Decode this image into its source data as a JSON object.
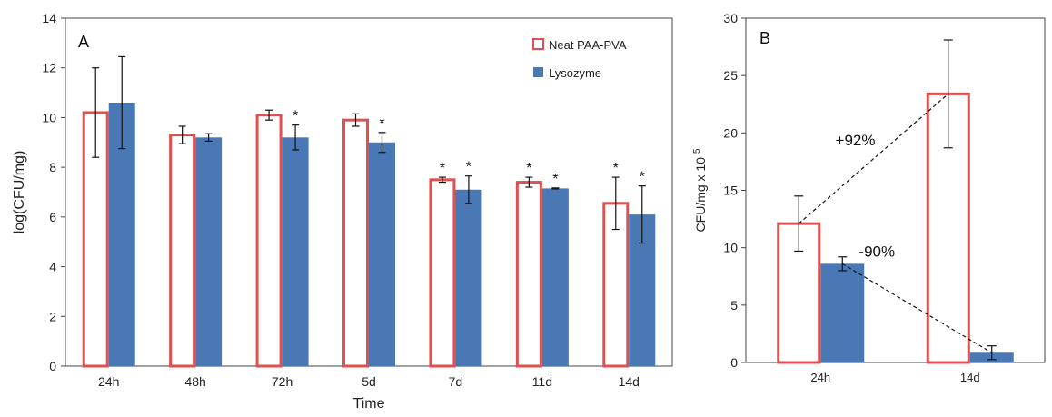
{
  "colors": {
    "neat": "#e05050",
    "lysozyme": "#4a78b4"
  },
  "chart_data": [
    {
      "panel": "A",
      "type": "bar",
      "xlabel": "Time",
      "ylabel": "log(CFU/mg)",
      "ylim": [
        0,
        14
      ],
      "yticks": [
        0,
        2,
        4,
        6,
        8,
        10,
        12,
        14
      ],
      "categories": [
        "24h",
        "48h",
        "72h",
        "5d",
        "7d",
        "11d",
        "14d"
      ],
      "legend_position": "top-right",
      "series": [
        {
          "name": "Neat PAA-PVA",
          "style": "outline",
          "values": [
            10.2,
            9.3,
            10.1,
            9.9,
            7.5,
            7.4,
            6.55
          ],
          "errors": [
            1.8,
            0.35,
            0.2,
            0.25,
            0.1,
            0.2,
            1.05
          ],
          "significant": [
            false,
            false,
            false,
            false,
            true,
            true,
            true
          ]
        },
        {
          "name": "Lysozyme",
          "style": "filled",
          "values": [
            10.6,
            9.2,
            9.2,
            9.0,
            7.1,
            7.15,
            6.1
          ],
          "errors": [
            1.85,
            0.15,
            0.5,
            0.4,
            0.55,
            0.02,
            1.15
          ],
          "significant": [
            false,
            false,
            true,
            true,
            true,
            true,
            true
          ]
        }
      ],
      "significance_marker": "*"
    },
    {
      "panel": "B",
      "type": "bar",
      "xlabel": "",
      "ylabel": "CFU/mg x 10",
      "ylabel_superscript": "5",
      "ylim": [
        0,
        30
      ],
      "yticks": [
        0,
        5,
        10,
        15,
        20,
        25,
        30
      ],
      "categories": [
        "24h",
        "14d"
      ],
      "series": [
        {
          "name": "Neat PAA-PVA",
          "style": "outline",
          "values": [
            12.1,
            23.4
          ],
          "errors": [
            2.4,
            4.7
          ]
        },
        {
          "name": "Lysozyme",
          "style": "filled",
          "values": [
            8.6,
            0.85
          ],
          "errors": [
            0.6,
            0.6
          ]
        }
      ],
      "annotations": [
        {
          "text": "+92%",
          "series": "Neat PAA-PVA"
        },
        {
          "text": "-90%",
          "series": "Lysozyme"
        }
      ]
    }
  ]
}
